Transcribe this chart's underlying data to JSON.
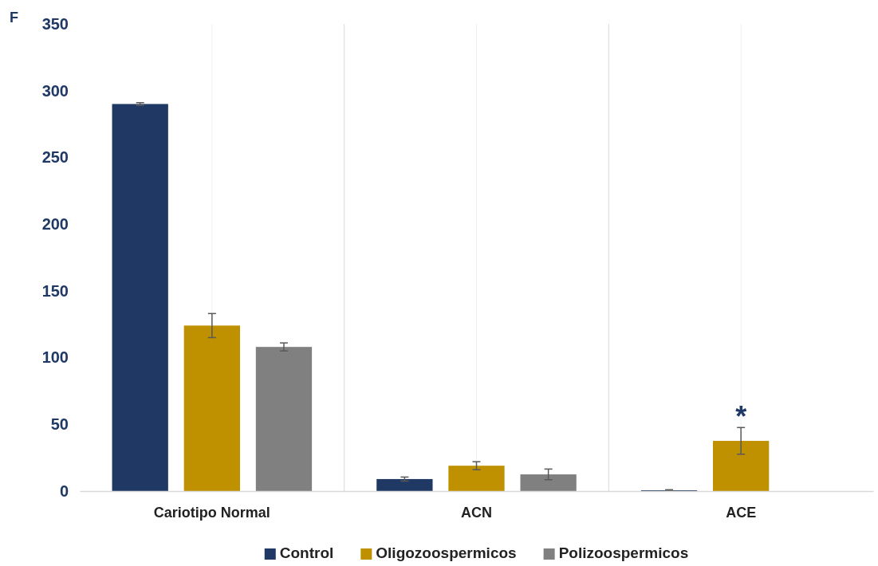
{
  "chart_data": {
    "type": "bar",
    "categories": [
      "Cariotipo Normal",
      "ACN",
      "ACE"
    ],
    "series": [
      {
        "name": "Control",
        "color": "#203864",
        "values": [
          290,
          9,
          0.6
        ],
        "errors": [
          1,
          1.5,
          0.4
        ]
      },
      {
        "name": "Oligozoospermicos",
        "color": "#bf9000",
        "values": [
          124,
          19,
          37.6
        ],
        "errors": [
          9,
          3,
          10
        ]
      },
      {
        "name": "Polizoospermicos",
        "color": "#808080",
        "values": [
          108,
          12.5,
          0
        ],
        "errors": [
          3,
          4,
          null
        ]
      }
    ],
    "ylim": [
      0,
      350
    ],
    "yticks": [
      0,
      50,
      100,
      150,
      200,
      250,
      300,
      350
    ],
    "grid": "x",
    "legend": "bottom",
    "annotations": [
      "F",
      {
        "text": "*",
        "x": "ACE",
        "y": 37.6
      }
    ]
  }
}
